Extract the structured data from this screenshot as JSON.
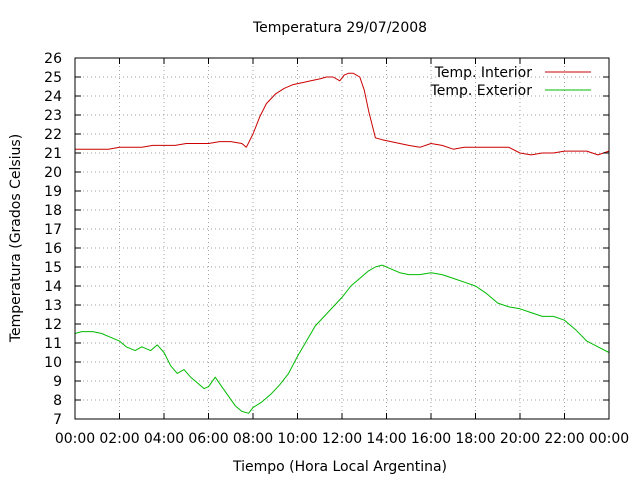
{
  "chart_data": {
    "type": "line",
    "title": "Temperatura 29/07/2008",
    "xlabel": "Tiempo (Hora Local Argentina)",
    "ylabel": "Temperatura (Grados Celsius)",
    "xlim": [
      0,
      24
    ],
    "ylim": [
      7,
      26
    ],
    "x_ticks": [
      "00:00",
      "02:00",
      "04:00",
      "06:00",
      "08:00",
      "10:00",
      "12:00",
      "14:00",
      "16:00",
      "18:00",
      "20:00",
      "22:00",
      "00:00"
    ],
    "y_ticks": [
      "7",
      "8",
      "9",
      "10",
      "11",
      "12",
      "13",
      "14",
      "15",
      "16",
      "17",
      "18",
      "19",
      "20",
      "21",
      "22",
      "23",
      "24",
      "25",
      "26"
    ],
    "grid": true,
    "legend_position": "top-right",
    "series": [
      {
        "name": "Temp. Interior",
        "color": "#cc0000",
        "x": [
          0,
          0.5,
          1,
          1.5,
          2,
          2.5,
          3,
          3.5,
          4,
          4.5,
          5,
          5.5,
          6,
          6.5,
          7,
          7.5,
          7.7,
          8,
          8.3,
          8.6,
          9,
          9.4,
          9.8,
          10.2,
          10.6,
          11,
          11.3,
          11.6,
          11.9,
          12.1,
          12.3,
          12.5,
          12.8,
          13.0,
          13.2,
          13.5,
          13.8,
          14.2,
          14.6,
          15,
          15.5,
          16,
          16.5,
          17,
          17.5,
          18,
          18.5,
          19,
          19.5,
          20,
          20.5,
          21,
          21.5,
          22,
          22.5,
          23,
          23.5,
          24
        ],
        "y": [
          21.2,
          21.2,
          21.2,
          21.2,
          21.3,
          21.3,
          21.3,
          21.4,
          21.4,
          21.4,
          21.5,
          21.5,
          21.5,
          21.6,
          21.6,
          21.5,
          21.3,
          22.0,
          22.9,
          23.6,
          24.1,
          24.4,
          24.6,
          24.7,
          24.8,
          24.9,
          25.0,
          25.0,
          24.8,
          25.1,
          25.2,
          25.2,
          25.0,
          24.3,
          23.2,
          21.8,
          21.7,
          21.6,
          21.5,
          21.4,
          21.3,
          21.5,
          21.4,
          21.2,
          21.3,
          21.3,
          21.3,
          21.3,
          21.3,
          21.0,
          20.9,
          21.0,
          21.0,
          21.1,
          21.1,
          21.1,
          20.9,
          21.1
        ]
      },
      {
        "name": "Temp. Exterior",
        "color": "#00bb00",
        "x": [
          0,
          0.3,
          0.8,
          1.2,
          1.6,
          2,
          2.3,
          2.7,
          3.0,
          3.4,
          3.7,
          4.0,
          4.3,
          4.6,
          4.9,
          5.2,
          5.5,
          5.8,
          6.0,
          6.3,
          6.6,
          6.9,
          7.2,
          7.5,
          7.8,
          8.0,
          8.4,
          8.8,
          9.2,
          9.6,
          10,
          10.4,
          10.8,
          11.2,
          11.6,
          12,
          12.4,
          12.8,
          13.2,
          13.5,
          13.8,
          14.2,
          14.6,
          15,
          15.5,
          16,
          16.5,
          17,
          17.5,
          18,
          18.5,
          19,
          19.5,
          20,
          20.5,
          21,
          21.5,
          22,
          22.5,
          23,
          23.5,
          24
        ],
        "y": [
          11.5,
          11.6,
          11.6,
          11.5,
          11.3,
          11.1,
          10.8,
          10.6,
          10.8,
          10.6,
          10.9,
          10.5,
          9.8,
          9.4,
          9.6,
          9.2,
          8.9,
          8.6,
          8.7,
          9.2,
          8.7,
          8.2,
          7.7,
          7.4,
          7.3,
          7.6,
          7.9,
          8.3,
          8.8,
          9.4,
          10.3,
          11.1,
          11.9,
          12.4,
          12.9,
          13.4,
          14.0,
          14.4,
          14.8,
          15.0,
          15.1,
          14.9,
          14.7,
          14.6,
          14.6,
          14.7,
          14.6,
          14.4,
          14.2,
          14.0,
          13.6,
          13.1,
          12.9,
          12.8,
          12.6,
          12.4,
          12.4,
          12.2,
          11.7,
          11.1,
          10.8,
          10.5
        ]
      }
    ]
  }
}
